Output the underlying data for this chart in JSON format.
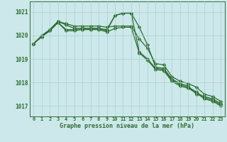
{
  "x": [
    0,
    1,
    2,
    3,
    4,
    5,
    6,
    7,
    8,
    9,
    10,
    11,
    12,
    13,
    14,
    15,
    16,
    17,
    18,
    19,
    20,
    21,
    22,
    23
  ],
  "series": [
    [
      1019.65,
      1019.95,
      1020.25,
      1020.6,
      1020.45,
      1020.3,
      1020.3,
      1020.3,
      1020.3,
      1020.25,
      1020.85,
      1020.95,
      1020.95,
      1020.35,
      1019.6,
      1018.65,
      1018.6,
      1018.15,
      1017.95,
      1017.85,
      1017.5,
      1017.4,
      1017.3,
      1017.1
    ],
    [
      1019.65,
      1020.0,
      1020.25,
      1020.6,
      1020.5,
      1020.4,
      1020.4,
      1020.4,
      1020.4,
      1020.35,
      1020.4,
      1020.4,
      1020.4,
      1019.85,
      1019.45,
      1018.8,
      1018.75,
      1018.25,
      1018.05,
      1017.95,
      1017.8,
      1017.5,
      1017.4,
      1017.2
    ],
    [
      1019.65,
      1019.95,
      1020.2,
      1020.55,
      1020.25,
      1020.25,
      1020.3,
      1020.3,
      1020.3,
      1020.2,
      1020.85,
      1020.95,
      1020.95,
      1019.3,
      1019.0,
      1018.6,
      1018.55,
      1018.1,
      1017.9,
      1017.8,
      1017.6,
      1017.35,
      1017.25,
      1017.05
    ],
    [
      1019.65,
      1019.95,
      1020.2,
      1020.55,
      1020.2,
      1020.2,
      1020.25,
      1020.25,
      1020.25,
      1020.15,
      1020.3,
      1020.35,
      1020.35,
      1019.25,
      1018.95,
      1018.55,
      1018.5,
      1018.05,
      1017.85,
      1017.75,
      1017.55,
      1017.3,
      1017.2,
      1017.0
    ]
  ],
  "line_color": "#2d6e2d",
  "bg_color": "#cce8ea",
  "grid_color": "#aacfcf",
  "ylabel_values": [
    1017,
    1018,
    1019,
    1020,
    1021
  ],
  "xlabel_values": [
    0,
    1,
    2,
    3,
    4,
    5,
    6,
    7,
    8,
    9,
    10,
    11,
    12,
    13,
    14,
    15,
    16,
    17,
    18,
    19,
    20,
    21,
    22,
    23
  ],
  "xlabel": "Graphe pression niveau de la mer (hPa)",
  "ylim": [
    1016.55,
    1021.45
  ],
  "xlim": [
    -0.5,
    23.5
  ],
  "marker": "D",
  "markersize": 2.5,
  "linewidth": 0.9,
  "tick_fontsize": 5.0,
  "xlabel_fontsize": 6.0
}
